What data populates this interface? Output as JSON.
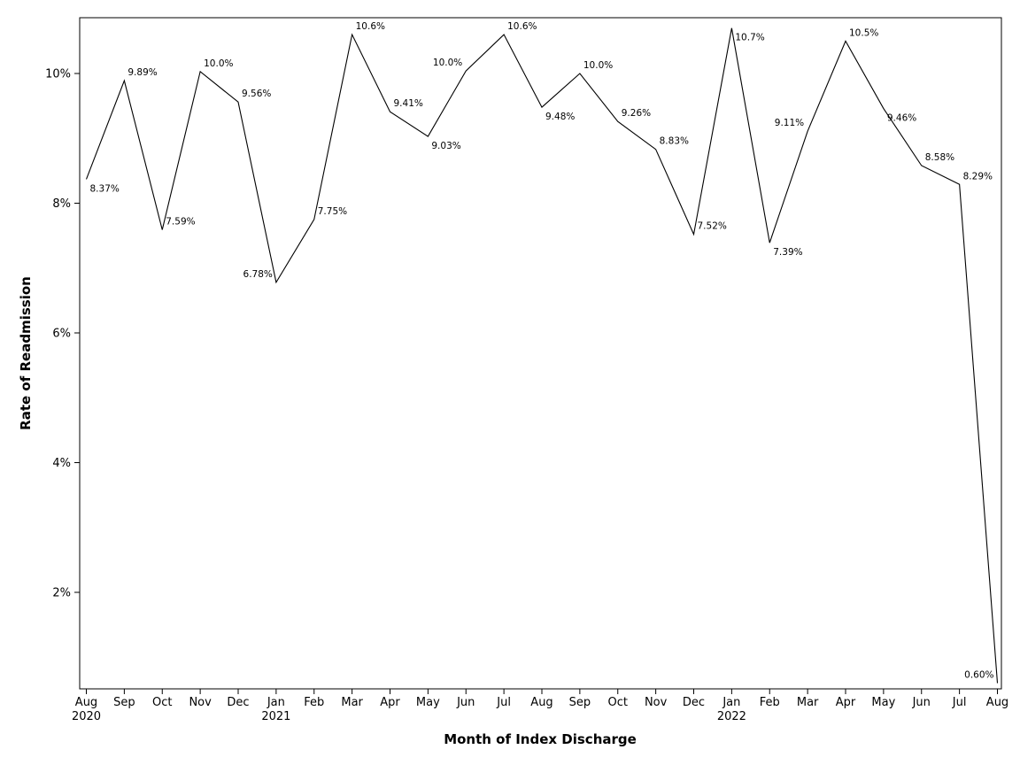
{
  "chart_data": {
    "type": "line",
    "xlabel": "Month of Index Discharge",
    "ylabel": "Rate of Readmission",
    "ylim": [
      0.5,
      10.8
    ],
    "yticks": [
      2,
      4,
      6,
      8,
      10
    ],
    "ytick_labels": [
      "2%",
      "4%",
      "6%",
      "8%",
      "10%"
    ],
    "grid": false,
    "legend": "none",
    "line_color": "#000000",
    "categories": [
      "Aug",
      "Sep",
      "Oct",
      "Nov",
      "Dec",
      "Jan",
      "Feb",
      "Mar",
      "Apr",
      "May",
      "Jun",
      "Jul",
      "Aug",
      "Sep",
      "Oct",
      "Nov",
      "Dec",
      "Jan",
      "Feb",
      "Mar",
      "Apr",
      "May",
      "Jun",
      "Jul",
      "Aug"
    ],
    "year_labels": [
      "2020",
      "",
      "",
      "",
      "",
      "2021",
      "",
      "",
      "",
      "",
      "",
      "",
      "",
      "",
      "",
      "",
      "",
      "2022",
      "",
      "",
      "",
      "",
      "",
      "",
      ""
    ],
    "values": [
      8.37,
      9.89,
      7.59,
      10.03,
      9.56,
      6.78,
      7.75,
      10.6,
      9.41,
      9.03,
      10.04,
      10.6,
      9.48,
      10.0,
      9.26,
      8.83,
      7.52,
      10.7,
      7.39,
      9.11,
      10.5,
      9.46,
      8.58,
      8.29,
      0.6
    ],
    "data_labels": [
      "8.37%",
      "9.89%",
      "7.59%",
      "10.0%",
      "9.56%",
      "6.78%",
      "7.75%",
      "10.6%",
      "9.41%",
      "9.03%",
      "10.0%",
      "10.6%",
      "9.48%",
      "10.0%",
      "9.26%",
      "8.83%",
      "7.52%",
      "10.7%",
      "7.39%",
      "9.11%",
      "10.5%",
      "9.46%",
      "8.58%",
      "8.29%",
      "0.60%"
    ]
  }
}
